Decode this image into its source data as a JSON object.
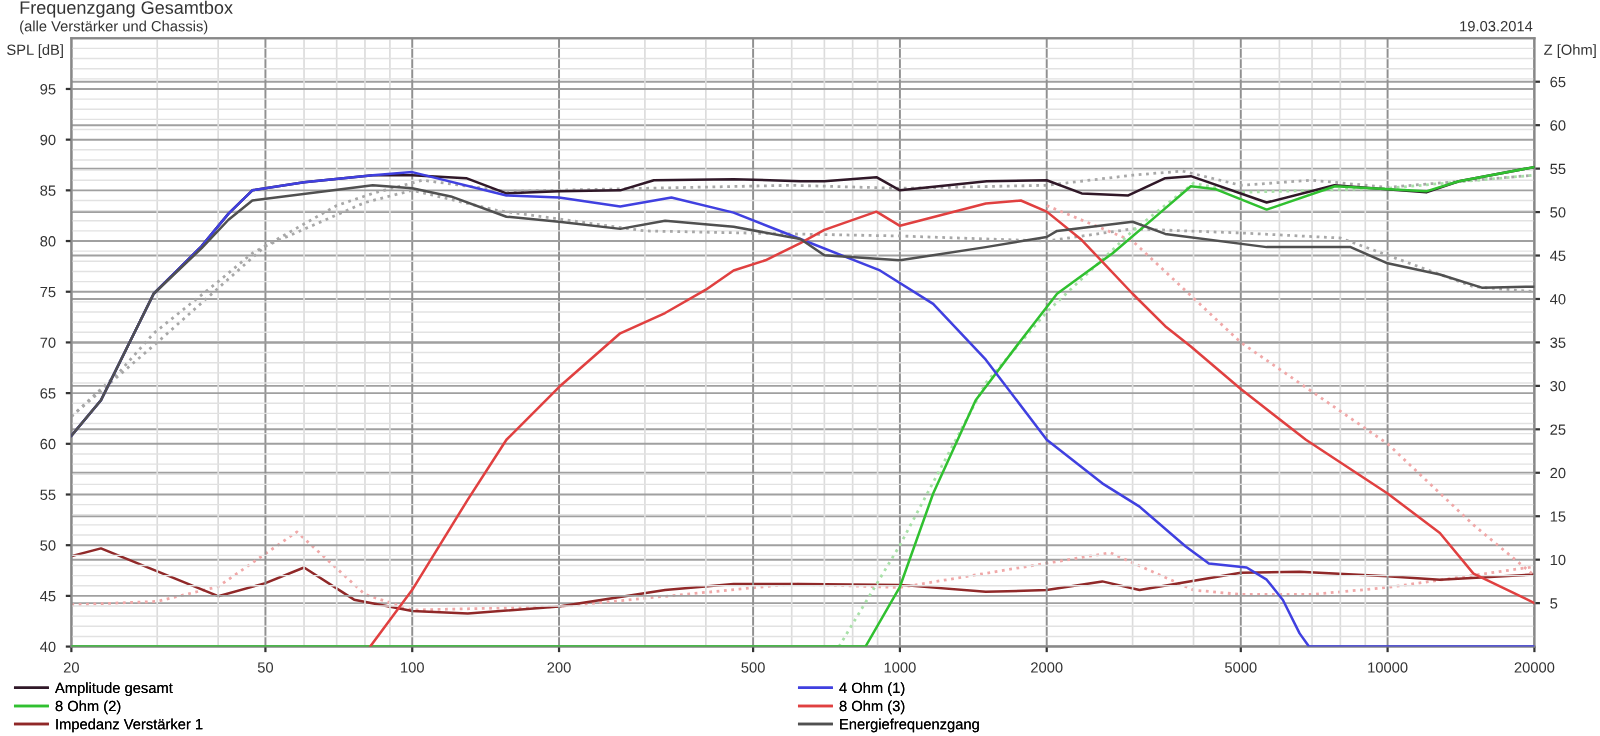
{
  "chart_data": {
    "type": "line",
    "title": "Frequenzgang Gesamtbox",
    "subtitle": "(alle Verstärker und Chassis)",
    "ylabel": "SPL [dB]",
    "y2label": "Z [Ohm]",
    "annotations": [
      "19.03.2014"
    ],
    "log": "x",
    "grid": true,
    "legend": "bottom",
    "xlim": [
      20,
      20000
    ],
    "xticks": [
      20,
      50,
      100,
      200,
      500,
      1000,
      2000,
      5000,
      10000,
      20000
    ],
    "ylim": [
      40,
      100
    ],
    "yticks": [
      40,
      45,
      50,
      55,
      60,
      65,
      70,
      75,
      80,
      85,
      90,
      95
    ],
    "y2lim": [
      0,
      70
    ],
    "y2ticks": [
      5,
      10,
      15,
      20,
      25,
      30,
      35,
      40,
      45,
      50,
      55,
      60,
      65
    ],
    "series": [
      {
        "name": "Amplitude gesamt",
        "color": "#301828",
        "x": [
          20,
          23,
          29.5,
          37,
          42,
          47,
          60,
          83,
          100,
          129,
          156,
          200,
          267,
          313,
          456,
          625,
          700,
          895,
          1000,
          1507,
          2000,
          2360,
          2940,
          3500,
          3950,
          5650,
          7780,
          12000,
          14000,
          20000
        ],
        "values": [
          60.8,
          64.3,
          74.8,
          79.5,
          82.7,
          85.0,
          85.8,
          86.5,
          86.5,
          86.2,
          84.7,
          84.9,
          85.0,
          86.0,
          86.1,
          85.9,
          85.9,
          86.3,
          85.0,
          85.9,
          86.0,
          84.7,
          84.5,
          86.2,
          86.4,
          83.8,
          85.5,
          84.8,
          85.9,
          87.3
        ]
      },
      {
        "name": "8 Ohm (2)",
        "color": "#30c030",
        "x": [
          20,
          850,
          1000,
          1170,
          1430,
          1770,
          2100,
          2730,
          3400,
          3950,
          4450,
          5650,
          7800,
          12000,
          14000,
          20000
        ],
        "values": [
          40,
          40,
          45.9,
          55.1,
          64.3,
          70.2,
          74.8,
          78.8,
          82.7,
          85.4,
          85.1,
          83.1,
          85.4,
          84.9,
          85.9,
          87.3
        ]
      },
      {
        "name": "Impedanz Verstärker 1",
        "color": "#902828",
        "axis": "y2",
        "x": [
          20,
          23,
          40,
          50,
          60,
          76,
          100,
          130,
          200,
          330,
          456,
          625,
          1000,
          1500,
          2000,
          2600,
          3100,
          5000,
          6600,
          10000,
          12800,
          20000
        ],
        "values": [
          10.4,
          11.3,
          5.8,
          7.3,
          9.1,
          5.4,
          4.1,
          3.8,
          4.6,
          6.5,
          7.2,
          7.2,
          7.1,
          6.3,
          6.5,
          7.5,
          6.5,
          8.5,
          8.6,
          8.1,
          7.7,
          8.3
        ]
      },
      {
        "name": "4 Ohm (1)",
        "color": "#4040e0",
        "x": [
          20,
          23,
          29.5,
          37,
          42,
          47,
          60,
          83,
          100,
          156,
          200,
          267,
          340,
          456,
          625,
          910,
          1170,
          1500,
          2000,
          2600,
          3100,
          3850,
          4300,
          5140,
          5650,
          6100,
          6600,
          6900,
          20000
        ],
        "values": [
          60.8,
          64.3,
          74.8,
          79.5,
          82.7,
          85.0,
          85.8,
          86.5,
          86.8,
          84.5,
          84.3,
          83.4,
          84.3,
          82.8,
          80.2,
          77.1,
          73.8,
          68.3,
          60.4,
          56.1,
          53.8,
          49.9,
          48.2,
          47.8,
          46.6,
          44.6,
          41.3,
          40,
          40
        ]
      },
      {
        "name": "8 Ohm (3)",
        "color": "#e04040",
        "x": [
          82,
          100,
          130,
          156,
          200,
          267,
          330,
          400,
          456,
          530,
          625,
          700,
          895,
          1000,
          1500,
          1770,
          2000,
          2360,
          3000,
          3500,
          3950,
          5000,
          6800,
          10000,
          12800,
          15000,
          20000
        ],
        "values": [
          40,
          45.6,
          54.5,
          60.4,
          65.6,
          70.9,
          72.9,
          75.2,
          77.1,
          78.1,
          79.8,
          81.1,
          82.9,
          81.5,
          83.7,
          84.0,
          82.9,
          80.1,
          74.8,
          71.6,
          69.6,
          65.4,
          60.4,
          55.1,
          51.2,
          47.2,
          44.3
        ]
      },
      {
        "name": "Energiefrequenzgang",
        "color": "#505050",
        "x": [
          20,
          23,
          29.5,
          37,
          42,
          47,
          83,
          100,
          120,
          156,
          200,
          267,
          330,
          456,
          625,
          700,
          1000,
          1500,
          2000,
          2100,
          3000,
          3500,
          5650,
          8400,
          10000,
          12800,
          15600,
          20000
        ],
        "values": [
          60.8,
          64.3,
          74.8,
          79.3,
          82.1,
          84.0,
          85.5,
          85.2,
          84.4,
          82.4,
          81.9,
          81.2,
          82.0,
          81.4,
          80.2,
          78.6,
          78.1,
          79.4,
          80.4,
          81.0,
          81.9,
          80.7,
          79.4,
          79.4,
          77.8,
          76.7,
          75.4,
          75.5
        ]
      },
      {
        "color": "#a8a8a8",
        "line_style": "dotted",
        "x": [
          20,
          25,
          29.5,
          40,
          47,
          70,
          83,
          105,
          156,
          300,
          600,
          1000,
          2000,
          3000,
          3800,
          5000,
          7000,
          10000,
          20000
        ],
        "values": [
          62.7,
          67.0,
          70.9,
          76.0,
          78.8,
          83.5,
          84.7,
          86.0,
          84.9,
          85.2,
          85.5,
          85.2,
          85.5,
          86.5,
          86.9,
          85.5,
          86.0,
          85.3,
          86.5
        ]
      },
      {
        "color": "#a8a8a8",
        "line_style": "dotted",
        "x": [
          20,
          30,
          50,
          80,
          100,
          150,
          300,
          600,
          1000,
          2000,
          3000,
          5000,
          8000,
          15000,
          20000
        ],
        "values": [
          62.7,
          70.0,
          79.5,
          83.8,
          85.0,
          83.0,
          81.0,
          80.7,
          80.5,
          80.0,
          81.2,
          80.8,
          80.3,
          75.5,
          75.0
        ]
      },
      {
        "color": "#f0a8a8",
        "line_style": "dotted",
        "x": [
          2000,
          3000,
          5000,
          10000,
          15000,
          20000
        ],
        "values": [
          83.5,
          80.0,
          70.0,
          60.0,
          52.0,
          47.0
        ]
      },
      {
        "color": "#a8e0a8",
        "line_style": "dotted",
        "x": [
          750,
          1000,
          1500,
          2000,
          3000,
          4000,
          5000,
          10000,
          20000
        ],
        "values": [
          40,
          50,
          66,
          73,
          81,
          85.7,
          84.8,
          85.2,
          86.5
        ]
      },
      {
        "color": "#f0a8a8",
        "line_style": "dotted",
        "axis": "y2",
        "x": [
          20,
          30,
          40,
          58,
          80,
          100,
          200,
          600,
          1000,
          2700,
          4000,
          5000,
          7000,
          10000,
          20000
        ],
        "values": [
          4.8,
          5.2,
          6.9,
          13.2,
          6.0,
          4.2,
          4.6,
          7.2,
          6.8,
          10.8,
          6.5,
          6.0,
          6.0,
          6.8,
          9.2
        ]
      }
    ]
  }
}
